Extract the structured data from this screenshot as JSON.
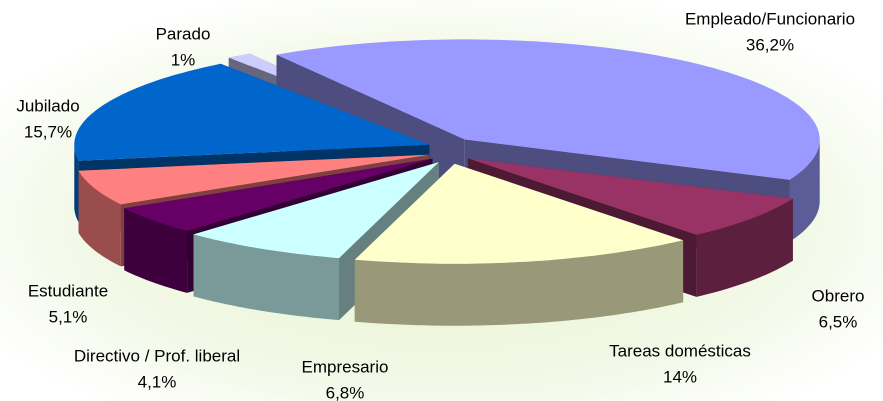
{
  "chart_data": {
    "type": "pie3d",
    "categories": [
      "Empleado/Funcionario",
      "Obrero",
      "Tareas domésticas",
      "Empresario",
      "Directivo / Prof. liberal",
      "Estudiante",
      "Jubilado",
      "Parado"
    ],
    "values": [
      36.2,
      6.5,
      14,
      6.8,
      4.1,
      5.1,
      15.7,
      1
    ],
    "value_labels": [
      "36,2%",
      "6,5%",
      "14%",
      "6,8%",
      "4,1%",
      "5,1%",
      "15,7%",
      "1%"
    ],
    "colors": [
      "#9999ff",
      "#993366",
      "#ffffcc",
      "#ccffff",
      "#660066",
      "#ff8080",
      "#0066cc",
      "#ccccff"
    ]
  }
}
